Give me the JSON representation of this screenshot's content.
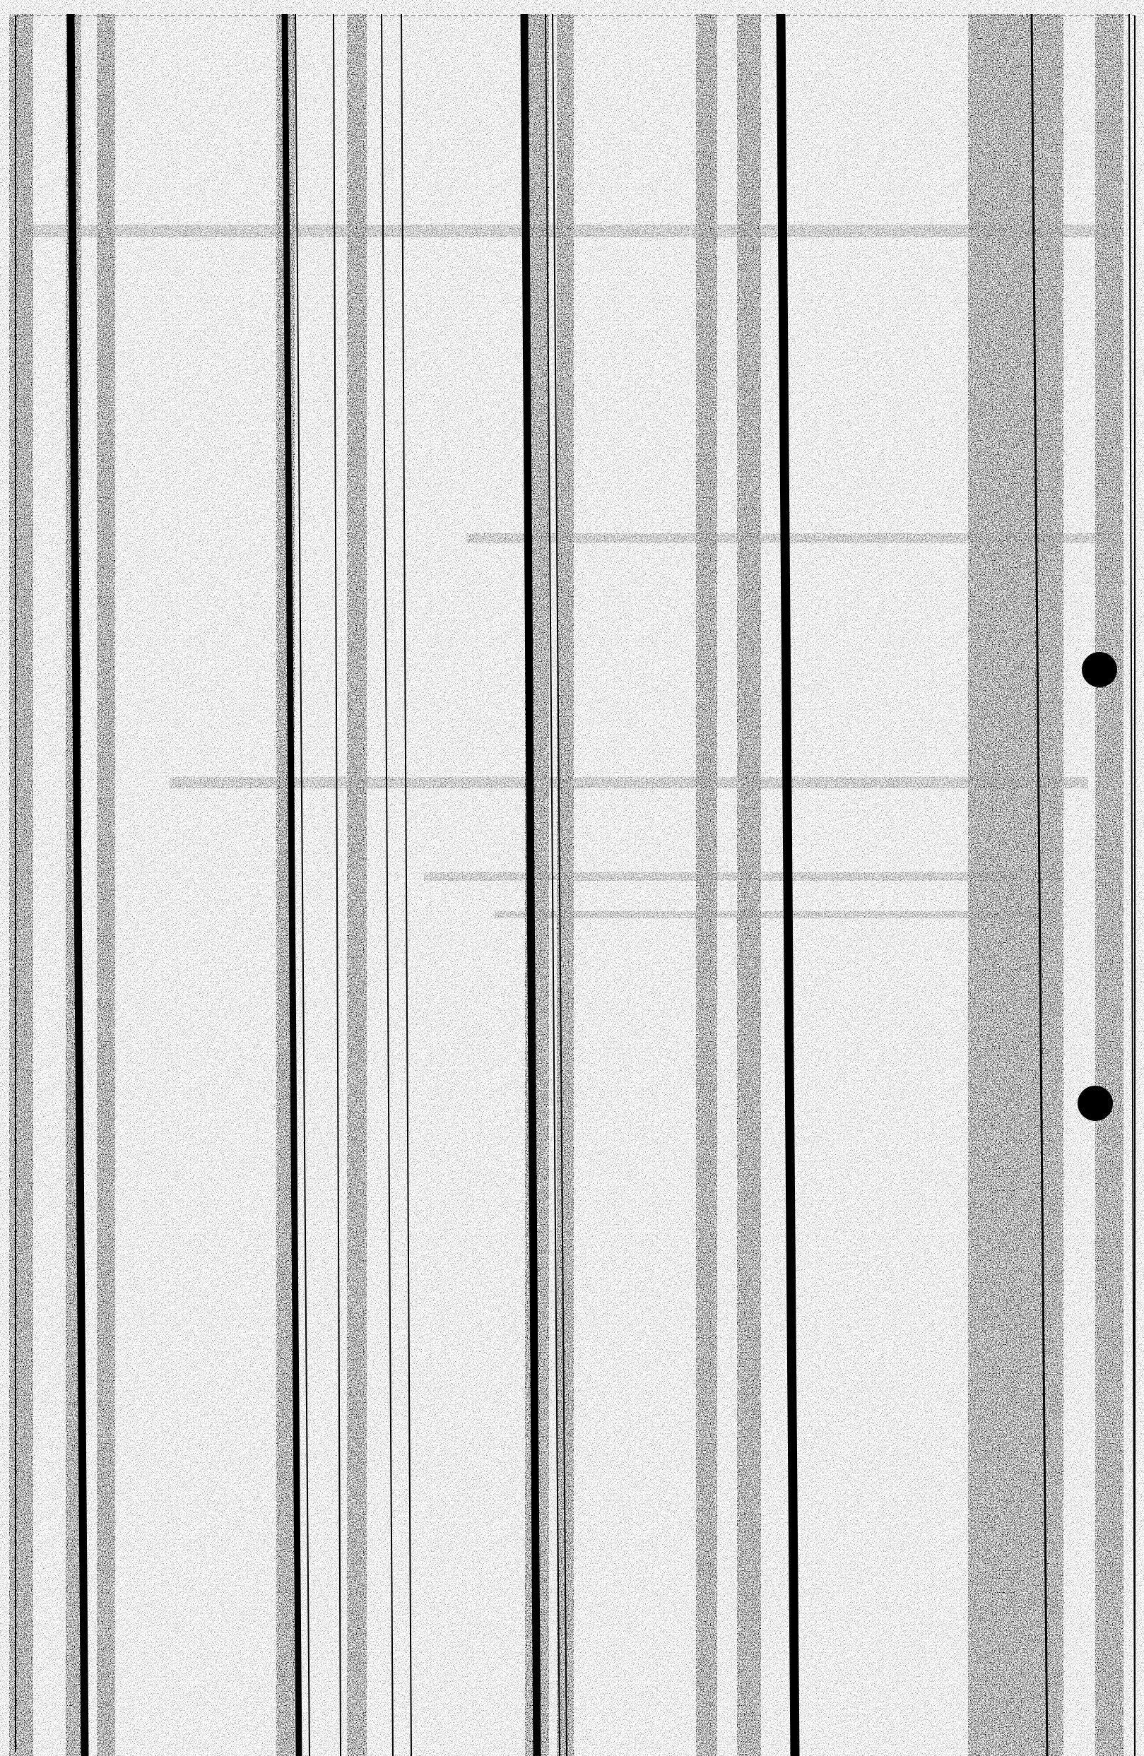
{
  "document": {
    "kind": "scanned-ledger-sheet",
    "legible_text": [],
    "colors": {
      "paper": "#ffffff",
      "ink": "#000000"
    },
    "icons": [
      "punch-hole-icon",
      "punch-hole-icon"
    ]
  }
}
